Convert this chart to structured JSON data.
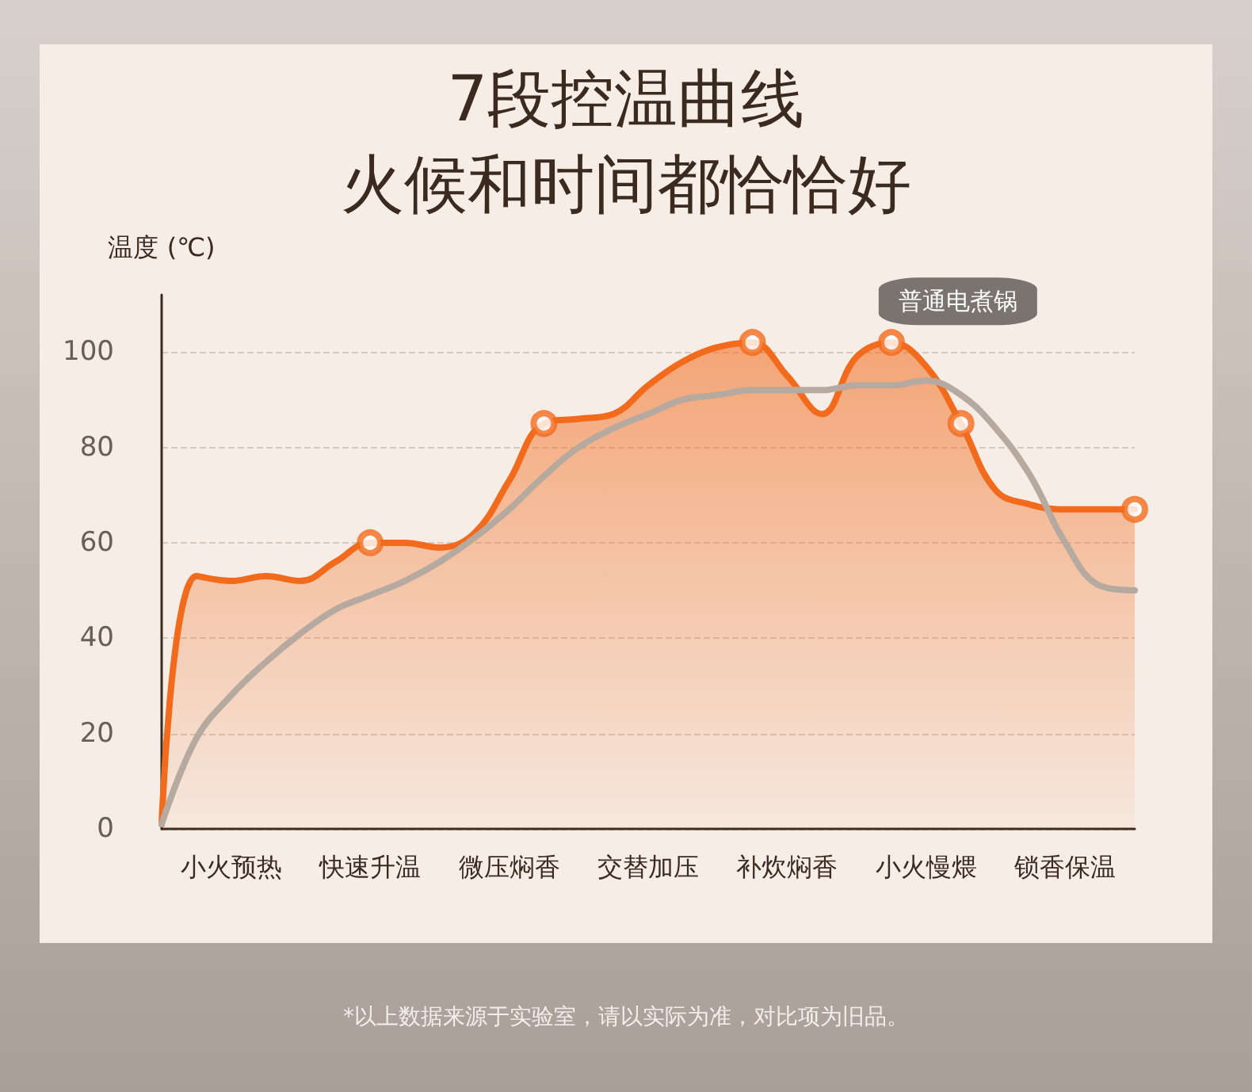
{
  "chart_data": {
    "type": "line",
    "title": "7段控温曲线",
    "subtitle": "火候和时间都恰恰好",
    "ylabel": "温度 (℃)",
    "categories": [
      null,
      null,
      "小火预热",
      null,
      null,
      null,
      "快速升温",
      null,
      null,
      null,
      "微压焖香",
      null,
      null,
      null,
      "交替加压",
      null,
      null,
      null,
      "补炊焖香",
      null,
      null,
      null,
      "小火慢煨",
      null,
      null,
      null,
      "锁香保温",
      null,
      null
    ],
    "ylim": [
      0,
      112
    ],
    "yticks": [
      0,
      20,
      40,
      60,
      80,
      100
    ],
    "grid": "y",
    "marker": "none",
    "line_style": "solid",
    "series": [
      {
        "type": "area",
        "color": "#f26b1d",
        "values": [
          1,
          53,
          52,
          53,
          52,
          56,
          60,
          60,
          59,
          62,
          73,
          85,
          86,
          87,
          93,
          98,
          101,
          102,
          95,
          87,
          99,
          102,
          97,
          85,
          71,
          68,
          67,
          67,
          67
        ]
      },
      {
        "type": "scatter",
        "color": "#f26b1d",
        "marker": "circle",
        "values": [
          null,
          null,
          null,
          null,
          null,
          null,
          60,
          null,
          null,
          null,
          null,
          85,
          null,
          null,
          null,
          null,
          null,
          102,
          null,
          null,
          null,
          102,
          null,
          85,
          null,
          null,
          null,
          null,
          67
        ]
      },
      {
        "name": "普通电煮锅",
        "color": "#b5a9a0",
        "values": [
          1,
          19,
          28,
          35,
          41,
          46,
          49,
          52,
          56,
          61,
          67,
          74,
          80,
          84,
          87,
          90,
          91,
          92,
          92,
          92,
          93,
          93,
          94,
          91,
          84,
          74,
          60,
          51,
          50
        ]
      }
    ],
    "annotations": [
      "*以上数据来源于实验室，请以实际为准，对比项为旧品。"
    ]
  }
}
